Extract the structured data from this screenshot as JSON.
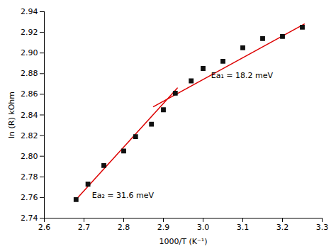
{
  "chart_data": {
    "type": "scatter",
    "series": [
      {
        "type": "scatter",
        "marker": "square",
        "color": "#111111",
        "x": [
          2.68,
          2.71,
          2.75,
          2.8,
          2.83,
          2.87,
          2.9,
          2.93,
          2.97,
          3.0,
          3.05,
          3.1,
          3.15,
          3.2,
          3.25
        ],
        "values": [
          2.758,
          2.773,
          2.791,
          2.805,
          2.819,
          2.831,
          2.845,
          2.861,
          2.873,
          2.885,
          2.892,
          2.905,
          2.914,
          2.916,
          2.925
        ]
      },
      {
        "type": "line",
        "line_style": "solid",
        "color": "#dd0000",
        "x": [
          2.68,
          2.935
        ],
        "values": [
          2.758,
          2.866
        ]
      },
      {
        "type": "line",
        "line_style": "solid",
        "color": "#dd0000",
        "x": [
          2.875,
          3.255
        ],
        "values": [
          2.848,
          2.928
        ]
      }
    ],
    "annotations": [
      {
        "text": "Ea₁ = 18.2 meV",
        "x": 3.02,
        "y": 2.878
      },
      {
        "text": "Ea₂ = 31.6 meV",
        "x": 2.72,
        "y": 2.762
      }
    ],
    "x_label": "1000/T (K⁻¹)",
    "y_label": "ln (R) kOhm",
    "xlim": [
      2.6,
      3.3
    ],
    "ylim": [
      2.74,
      2.94
    ],
    "xticks": [
      2.6,
      2.7,
      2.8,
      2.9,
      {
        "value": 3.0,
        "label": "3.0"
      },
      3.1,
      3.2,
      3.3
    ],
    "yticks": [
      2.74,
      2.76,
      2.78,
      {
        "value": 2.8,
        "label": "2.80"
      },
      2.82,
      2.84,
      2.86,
      2.88,
      {
        "value": 2.9,
        "label": "2.90"
      },
      2.92,
      2.94
    ],
    "grid": false
  }
}
